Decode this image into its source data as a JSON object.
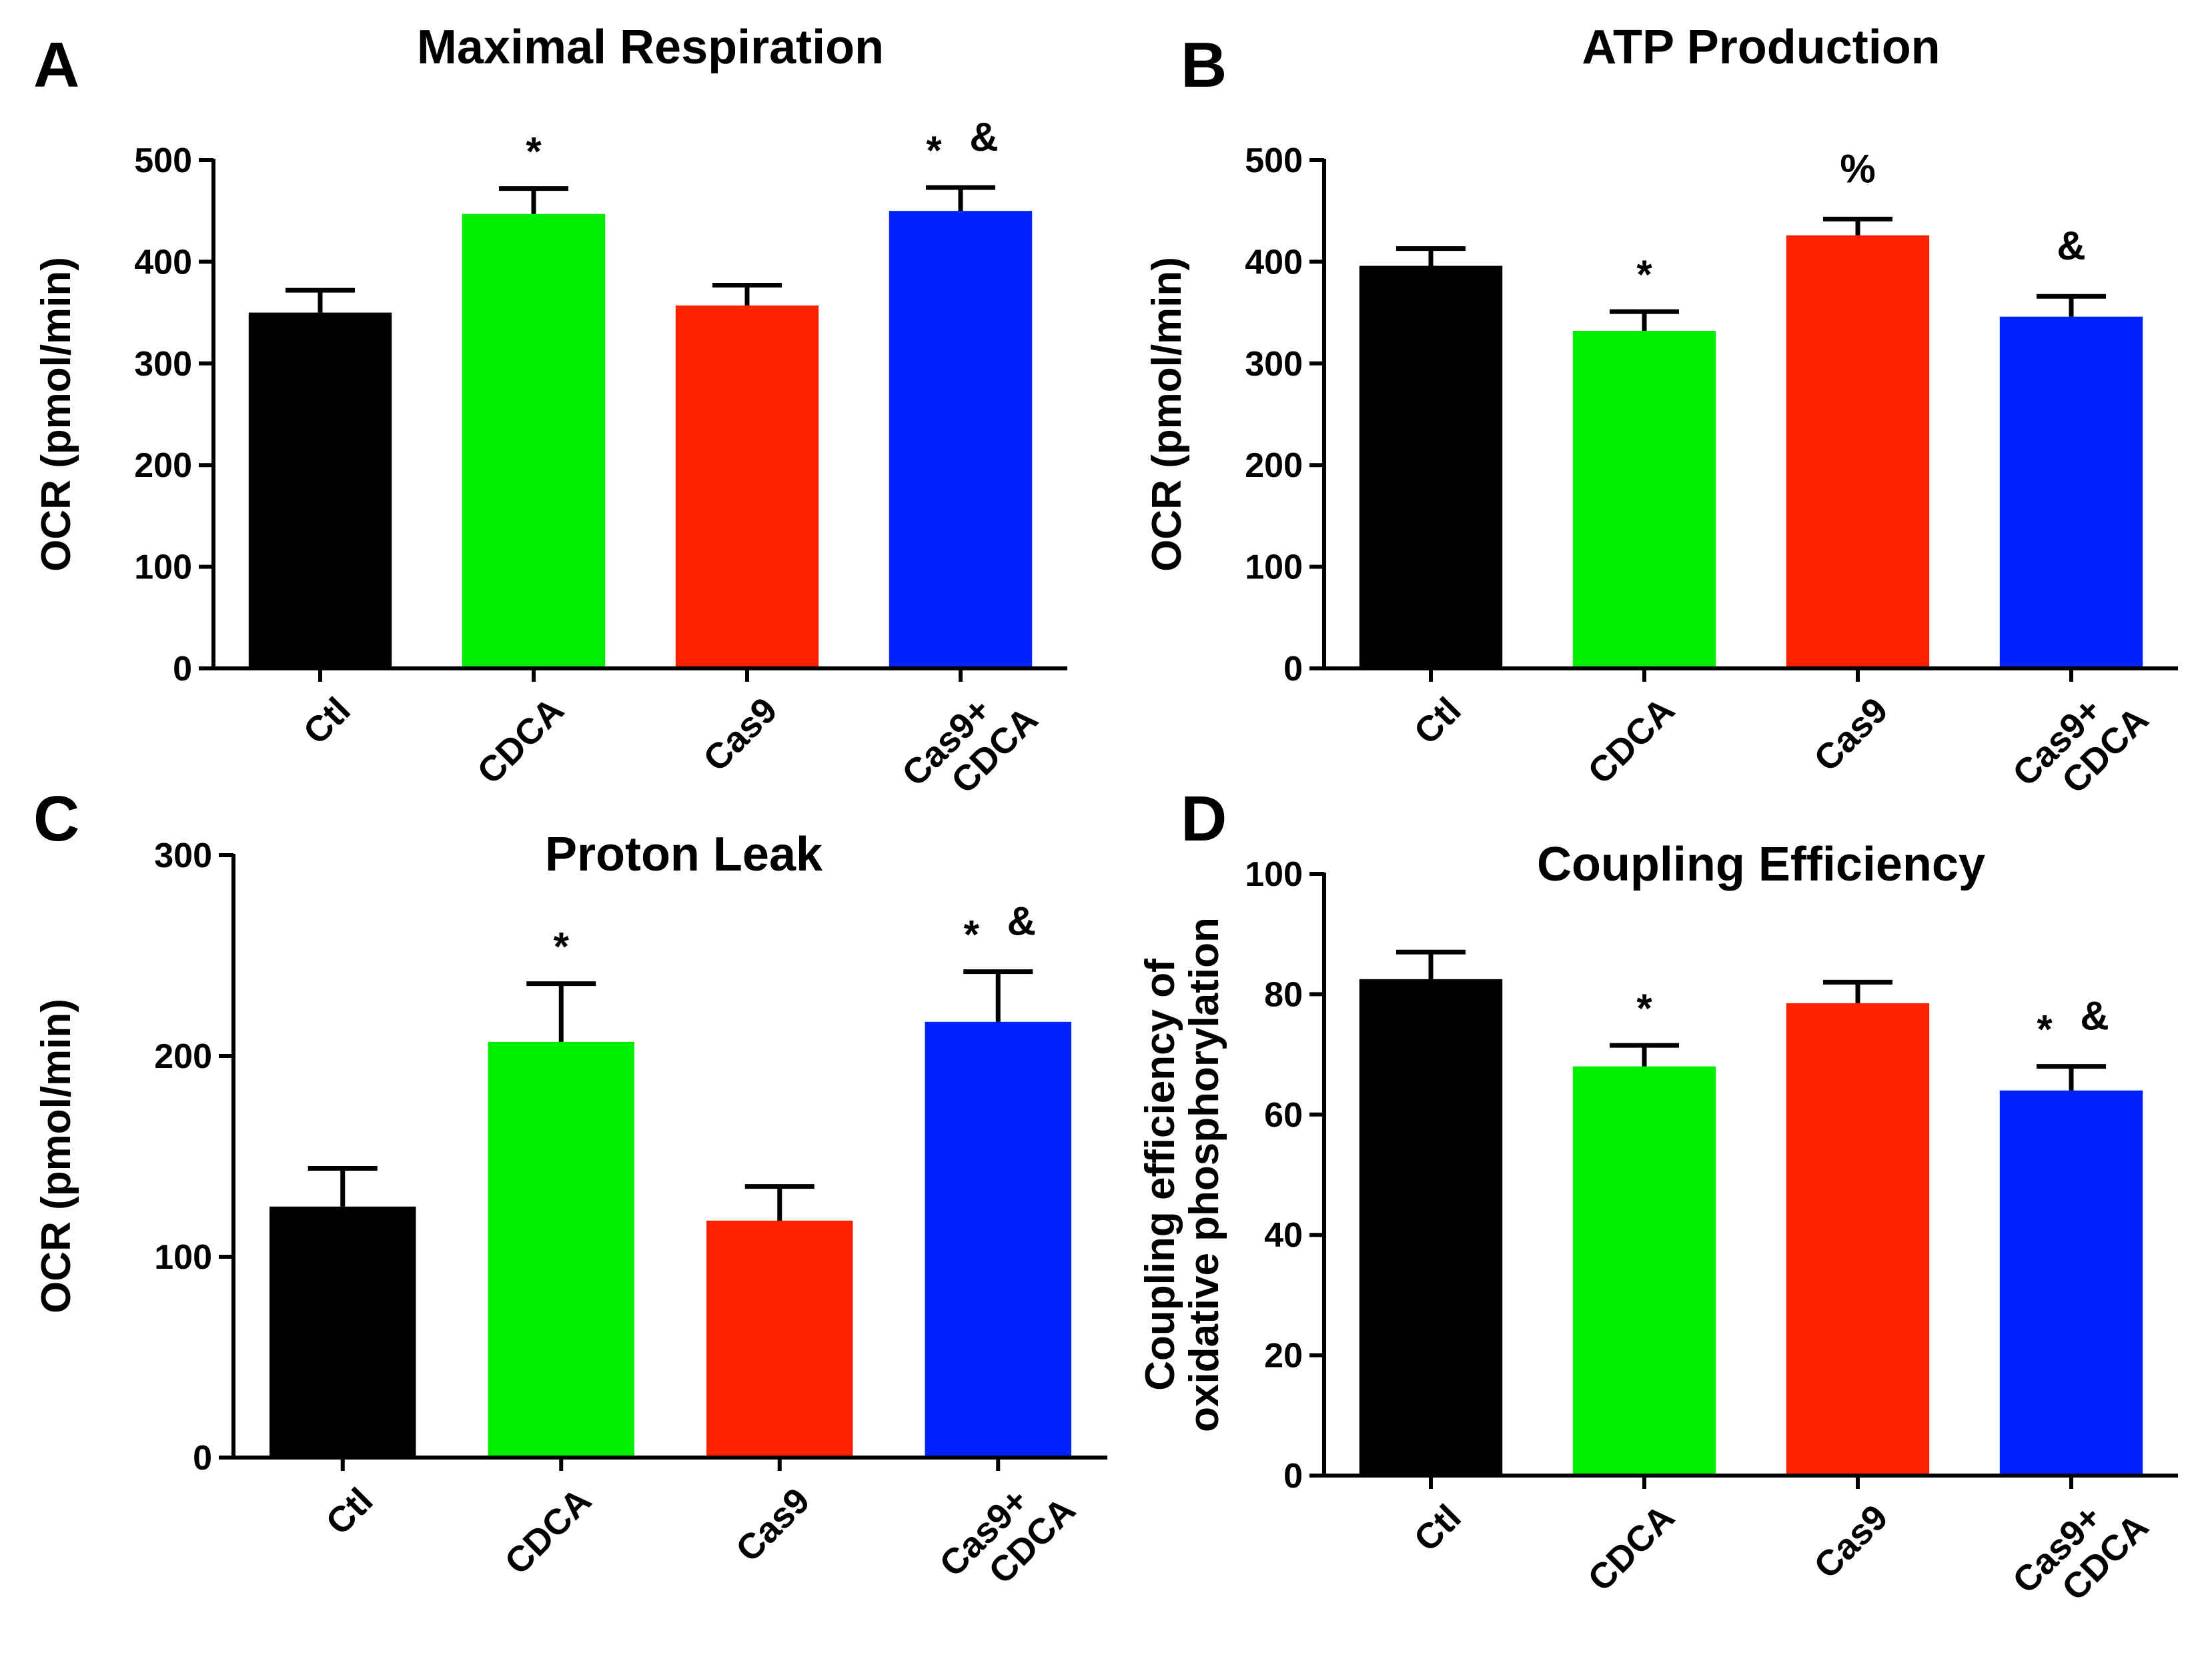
{
  "figure": {
    "panels": [
      {
        "letter": "A"
      },
      {
        "letter": "B"
      },
      {
        "letter": "C"
      },
      {
        "letter": "D"
      }
    ]
  },
  "chart_data": [
    {
      "panel": "A",
      "type": "bar",
      "title": "Maximal Respiration",
      "xlabel": "",
      "ylabel": "OCR (pmol/min)",
      "ylim": [
        0,
        500
      ],
      "yticks": [
        0,
        100,
        200,
        300,
        400,
        500
      ],
      "categories": [
        [
          "Ctl"
        ],
        [
          "CDCA"
        ],
        [
          "Cas9"
        ],
        [
          "Cas9+",
          "CDCA"
        ]
      ],
      "colors": [
        "#000000",
        "#00ee00",
        "#ff2200",
        "#0022ff"
      ],
      "values": [
        350,
        447,
        357,
        450
      ],
      "errors": [
        22,
        25,
        20,
        23
      ],
      "annotations": [
        [],
        [
          "*"
        ],
        [],
        [
          "*",
          "&"
        ]
      ]
    },
    {
      "panel": "B",
      "type": "bar",
      "title": "ATP Production",
      "xlabel": "",
      "ylabel": "OCR (pmol/min)",
      "ylim": [
        0,
        500
      ],
      "yticks": [
        0,
        100,
        200,
        300,
        400,
        500
      ],
      "categories": [
        [
          "Ctl"
        ],
        [
          "CDCA"
        ],
        [
          "Cas9"
        ],
        [
          "Cas9+",
          "CDCA"
        ]
      ],
      "colors": [
        "#000000",
        "#00ee00",
        "#ff2200",
        "#0022ff"
      ],
      "values": [
        396,
        332,
        426,
        346
      ],
      "errors": [
        17,
        19,
        16,
        20
      ],
      "annotations": [
        [],
        [
          "*"
        ],
        [
          "%"
        ],
        [
          "&"
        ]
      ]
    },
    {
      "panel": "C",
      "type": "bar",
      "title": "Proton Leak",
      "xlabel": "",
      "ylabel": "OCR (pmol/min)",
      "ylim": [
        0,
        300
      ],
      "yticks": [
        0,
        100,
        200,
        300
      ],
      "categories": [
        [
          "Ctl"
        ],
        [
          "CDCA"
        ],
        [
          "Cas9"
        ],
        [
          "Cas9+",
          "CDCA"
        ]
      ],
      "colors": [
        "#000000",
        "#00ee00",
        "#ff2200",
        "#0022ff"
      ],
      "values": [
        125,
        207,
        118,
        217
      ],
      "errors": [
        19,
        29,
        17,
        25
      ],
      "annotations": [
        [],
        [
          "*"
        ],
        [],
        [
          "*",
          "&"
        ]
      ]
    },
    {
      "panel": "D",
      "type": "bar",
      "title": "Coupling Efficiency",
      "xlabel": "",
      "ylabel": [
        "Coupling efficiency of",
        "oxidative phosphorylation"
      ],
      "ylim": [
        0,
        100
      ],
      "yticks": [
        0,
        20,
        40,
        60,
        80,
        100
      ],
      "categories": [
        [
          "Ctl"
        ],
        [
          "CDCA"
        ],
        [
          "Cas9"
        ],
        [
          "Cas9+",
          "CDCA"
        ]
      ],
      "colors": [
        "#000000",
        "#00ee00",
        "#ff2200",
        "#0022ff"
      ],
      "values": [
        82.5,
        68,
        78.5,
        64
      ],
      "errors": [
        4.5,
        3.5,
        3.5,
        4
      ],
      "annotations": [
        [],
        [
          "*"
        ],
        [],
        [
          "*",
          "&"
        ]
      ]
    }
  ]
}
